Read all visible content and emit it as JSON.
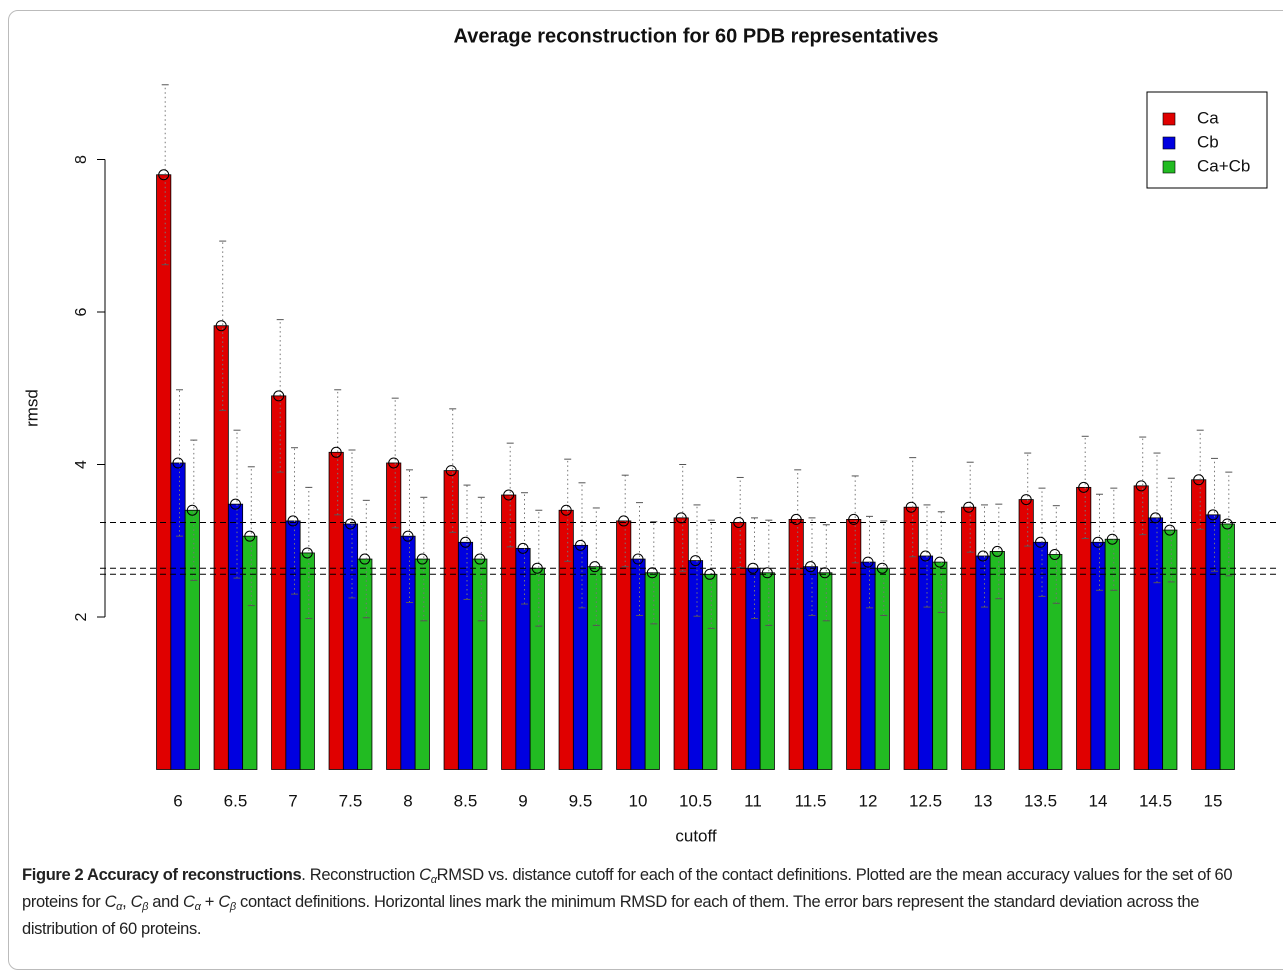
{
  "chart_data": {
    "type": "bar",
    "title": "Average reconstruction for 60 PDB representatives",
    "x_label": "cutoff",
    "y_label": "rmsd",
    "categories": [
      "6",
      "6.5",
      "7",
      "7.5",
      "8",
      "8.5",
      "9",
      "9.5",
      "10",
      "10.5",
      "11",
      "11.5",
      "12",
      "12.5",
      "13",
      "13.5",
      "14",
      "14.5",
      "15"
    ],
    "series": [
      {
        "name": "Ca",
        "color": "#e00000",
        "values": [
          7.8,
          5.82,
          4.9,
          4.16,
          4.02,
          3.92,
          3.6,
          3.4,
          3.26,
          3.3,
          3.24,
          3.28,
          3.28,
          3.44,
          3.44,
          3.54,
          3.7,
          3.72,
          3.8
        ],
        "errors": [
          1.18,
          1.11,
          1.0,
          0.82,
          0.85,
          0.81,
          0.68,
          0.67,
          0.6,
          0.7,
          0.59,
          0.65,
          0.57,
          0.65,
          0.59,
          0.61,
          0.67,
          0.64,
          0.65
        ]
      },
      {
        "name": "Cb",
        "color": "#0000e0",
        "values": [
          4.02,
          3.48,
          3.26,
          3.22,
          3.06,
          2.98,
          2.9,
          2.94,
          2.76,
          2.74,
          2.64,
          2.66,
          2.72,
          2.8,
          2.8,
          2.98,
          2.98,
          3.3,
          3.34
        ],
        "errors": [
          0.96,
          0.97,
          0.96,
          0.97,
          0.87,
          0.75,
          0.73,
          0.82,
          0.74,
          0.73,
          0.66,
          0.64,
          0.6,
          0.67,
          0.67,
          0.71,
          0.63,
          0.85,
          0.74
        ]
      },
      {
        "name": "Ca+Cb",
        "color": "#22bb22",
        "values": [
          3.4,
          3.06,
          2.84,
          2.76,
          2.76,
          2.76,
          2.64,
          2.66,
          2.58,
          2.56,
          2.58,
          2.58,
          2.64,
          2.72,
          2.86,
          2.82,
          3.02,
          3.14,
          3.22
        ],
        "errors": [
          0.92,
          0.91,
          0.86,
          0.77,
          0.81,
          0.81,
          0.76,
          0.77,
          0.67,
          0.71,
          0.69,
          0.63,
          0.62,
          0.66,
          0.62,
          0.64,
          0.67,
          0.68,
          0.68
        ]
      }
    ],
    "hlines": [
      3.24,
      2.64,
      2.56
    ],
    "ylim": [
      0,
      9
    ],
    "yticks": [
      2,
      4,
      6,
      8
    ],
    "legend": "top-right"
  },
  "caption": {
    "runs": [
      "Figure 2 Accuracy of reconstructions",
      ". Reconstruction ",
      "C",
      "α",
      "RMSD vs. distance cutoff for each of the contact definitions. Plotted are the mean accuracy values for the set of 60 proteins for ",
      "C",
      "α",
      ", ",
      "C",
      "β",
      " and ",
      "C",
      "α",
      " + ",
      "C",
      "β",
      " contact definitions. Horizontal lines mark the minimum RMSD for each of them. The error bars represent the standard deviation across the distribution of 60 proteins."
    ]
  }
}
